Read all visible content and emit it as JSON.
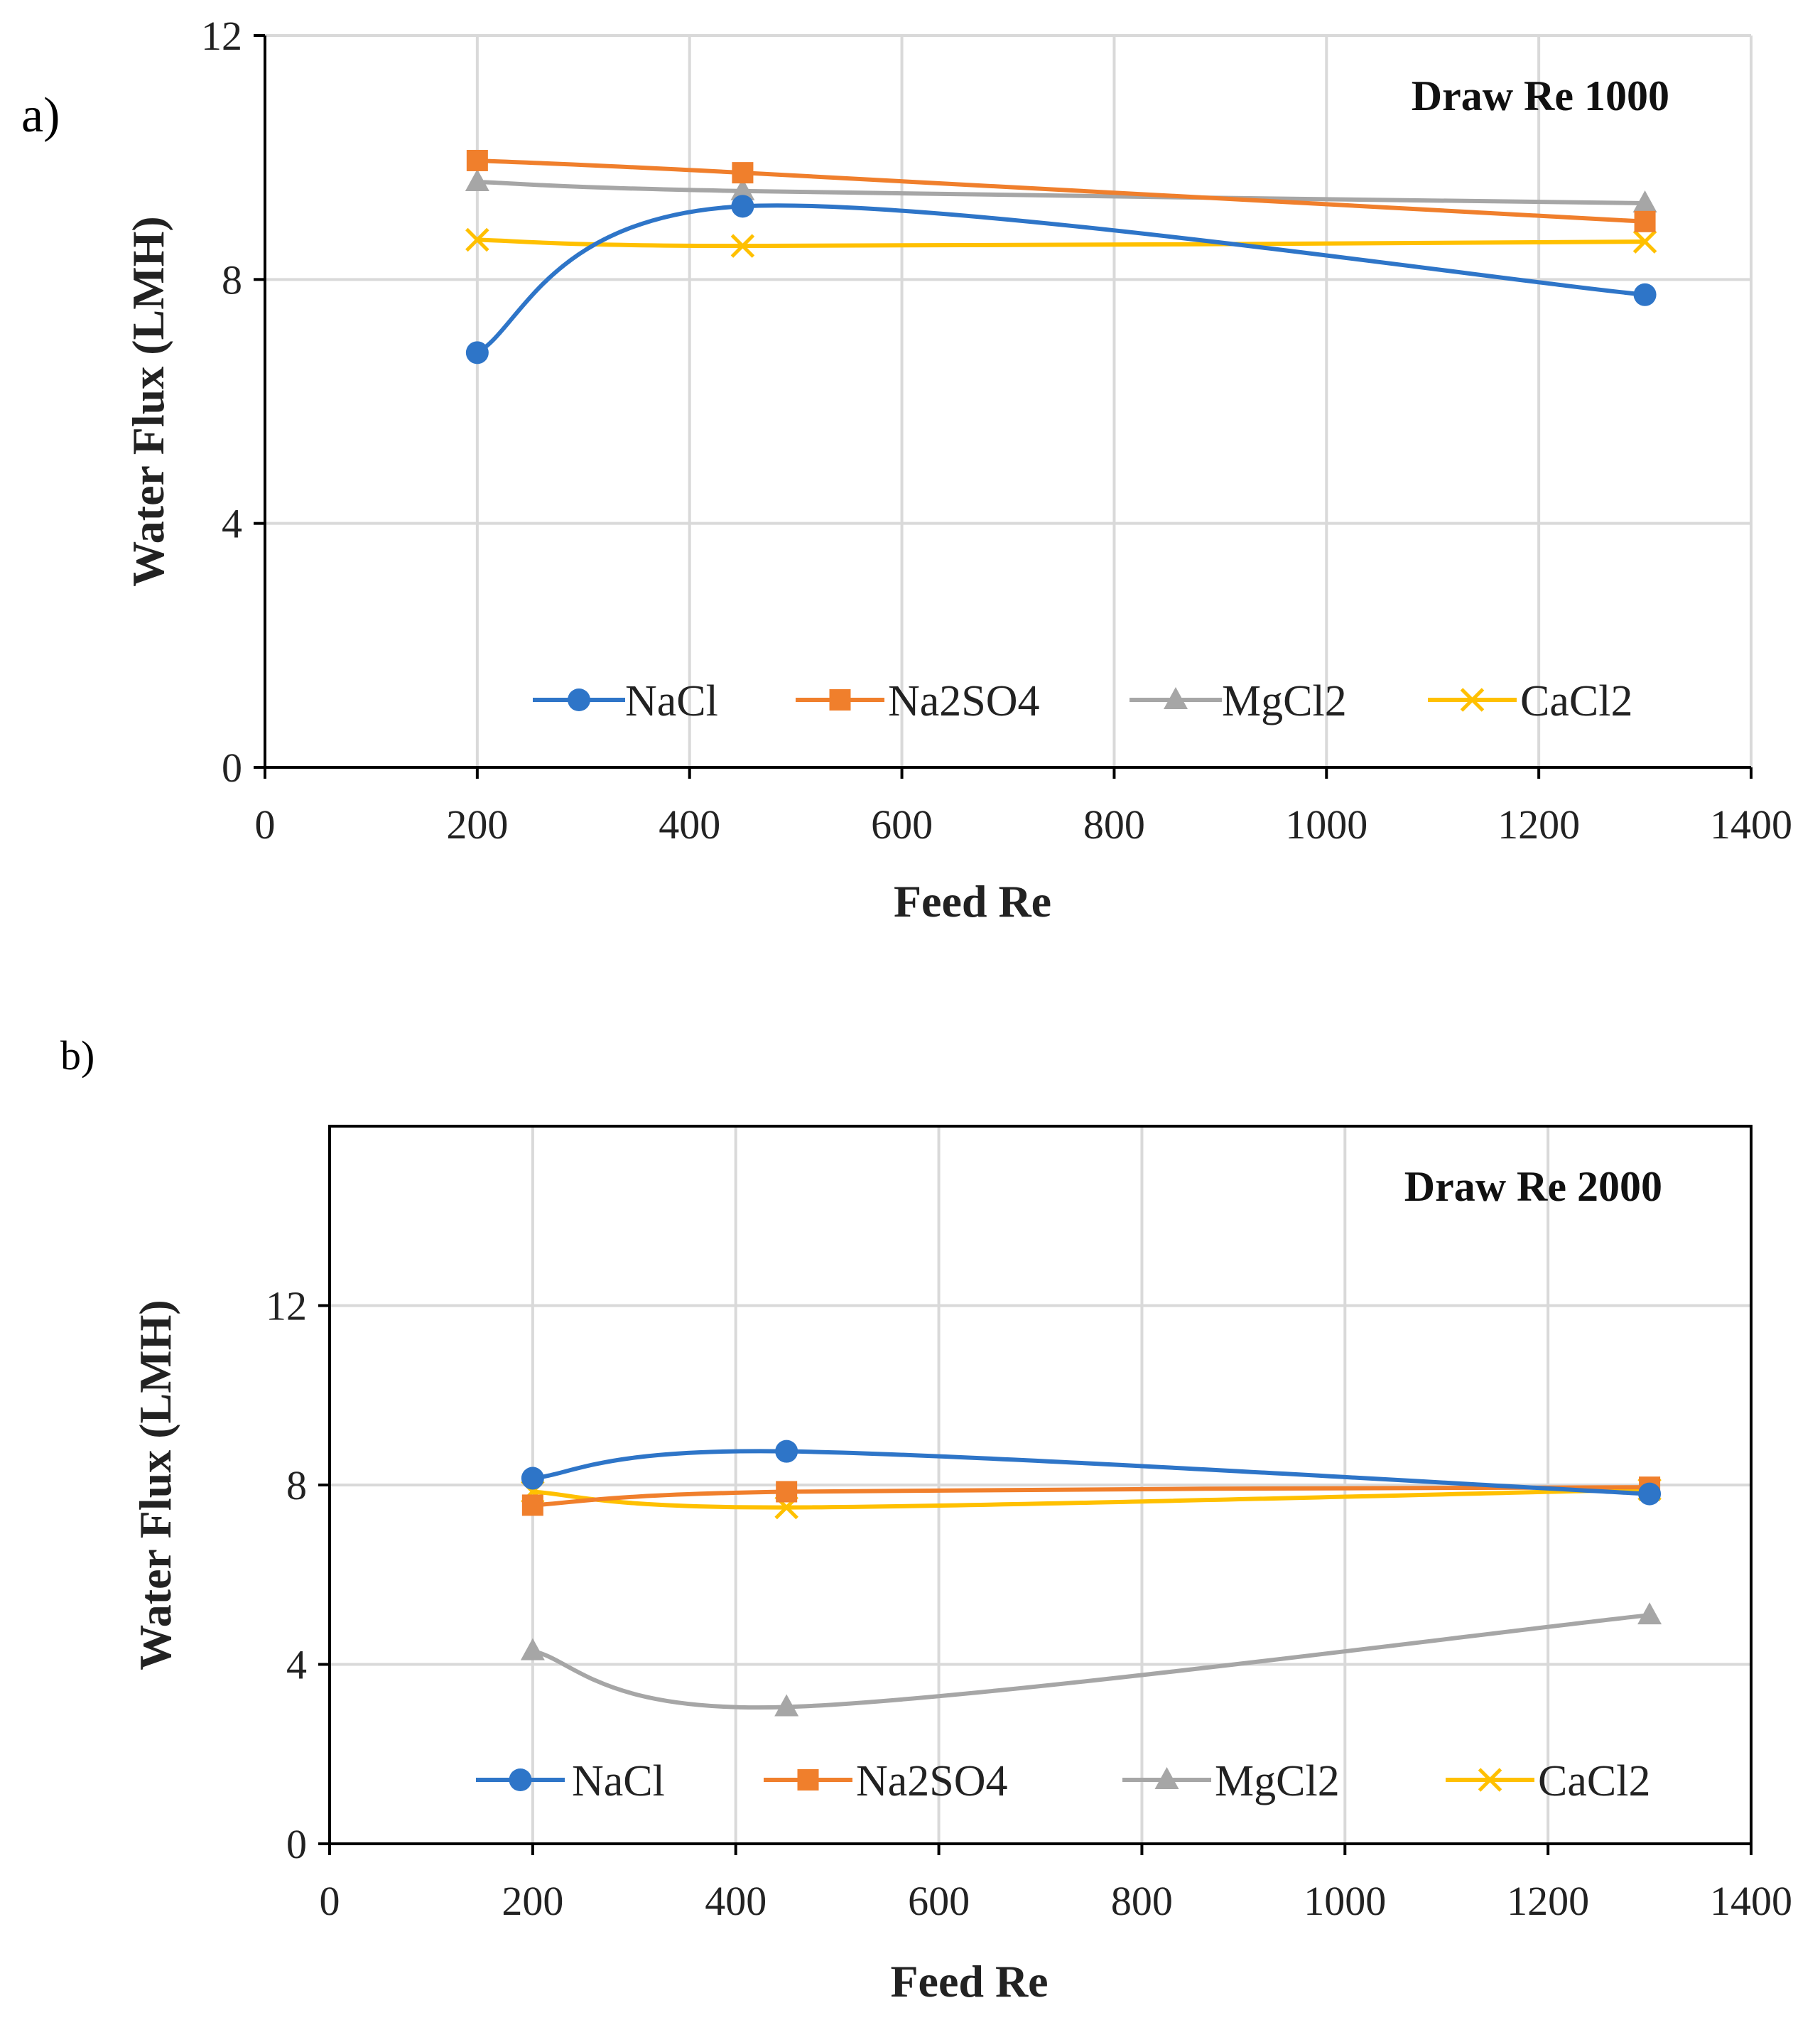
{
  "chart_data": [
    {
      "type": "line",
      "panel_label": "a)",
      "annotation": "Draw Re 1000",
      "xlabel": "Feed Re",
      "ylabel": "Water Flux (LMH)",
      "xlim": [
        0,
        1400
      ],
      "ylim": [
        0,
        12
      ],
      "xticks": [
        0,
        200,
        400,
        600,
        800,
        1000,
        1200,
        1400
      ],
      "yticks": [
        0,
        4,
        8,
        12
      ],
      "grid": true,
      "legend_position": "bottom-inside",
      "x": [
        200,
        450,
        1300
      ],
      "series": [
        {
          "name": "NaCl",
          "values": [
            6.8,
            9.2,
            7.75
          ],
          "color": "#2E75C8",
          "marker": "circle"
        },
        {
          "name": "Na2SO4",
          "values": [
            9.95,
            9.75,
            8.95
          ],
          "color": "#F07F2C",
          "marker": "square"
        },
        {
          "name": "MgCl2",
          "values": [
            9.6,
            9.45,
            9.25
          ],
          "color": "#A6A6A6",
          "marker": "triangle"
        },
        {
          "name": "CaCl2",
          "values": [
            8.65,
            8.55,
            8.62
          ],
          "color": "#FFC000",
          "marker": "x"
        }
      ]
    },
    {
      "type": "line",
      "panel_label": "b)",
      "annotation": "Draw Re 2000",
      "xlabel": "Feed Re",
      "ylabel": "Water Flux (LMH)",
      "xlim": [
        0,
        1400
      ],
      "ylim": [
        0,
        16
      ],
      "xticks": [
        0,
        200,
        400,
        600,
        800,
        1000,
        1200,
        1400
      ],
      "yticks": [
        0,
        4,
        8,
        12
      ],
      "grid": true,
      "legend_position": "bottom-inside",
      "x": [
        200,
        450,
        1300
      ],
      "series": [
        {
          "name": "NaCl",
          "values": [
            8.15,
            8.75,
            7.8
          ],
          "color": "#2E75C8",
          "marker": "circle"
        },
        {
          "name": "Na2SO4",
          "values": [
            7.55,
            7.85,
            7.95
          ],
          "color": "#F07F2C",
          "marker": "square"
        },
        {
          "name": "MgCl2",
          "values": [
            4.3,
            3.05,
            5.1
          ],
          "color": "#A6A6A6",
          "marker": "triangle"
        },
        {
          "name": "CaCl2",
          "values": [
            7.85,
            7.5,
            7.9
          ],
          "color": "#FFC000",
          "marker": "x"
        }
      ]
    }
  ]
}
